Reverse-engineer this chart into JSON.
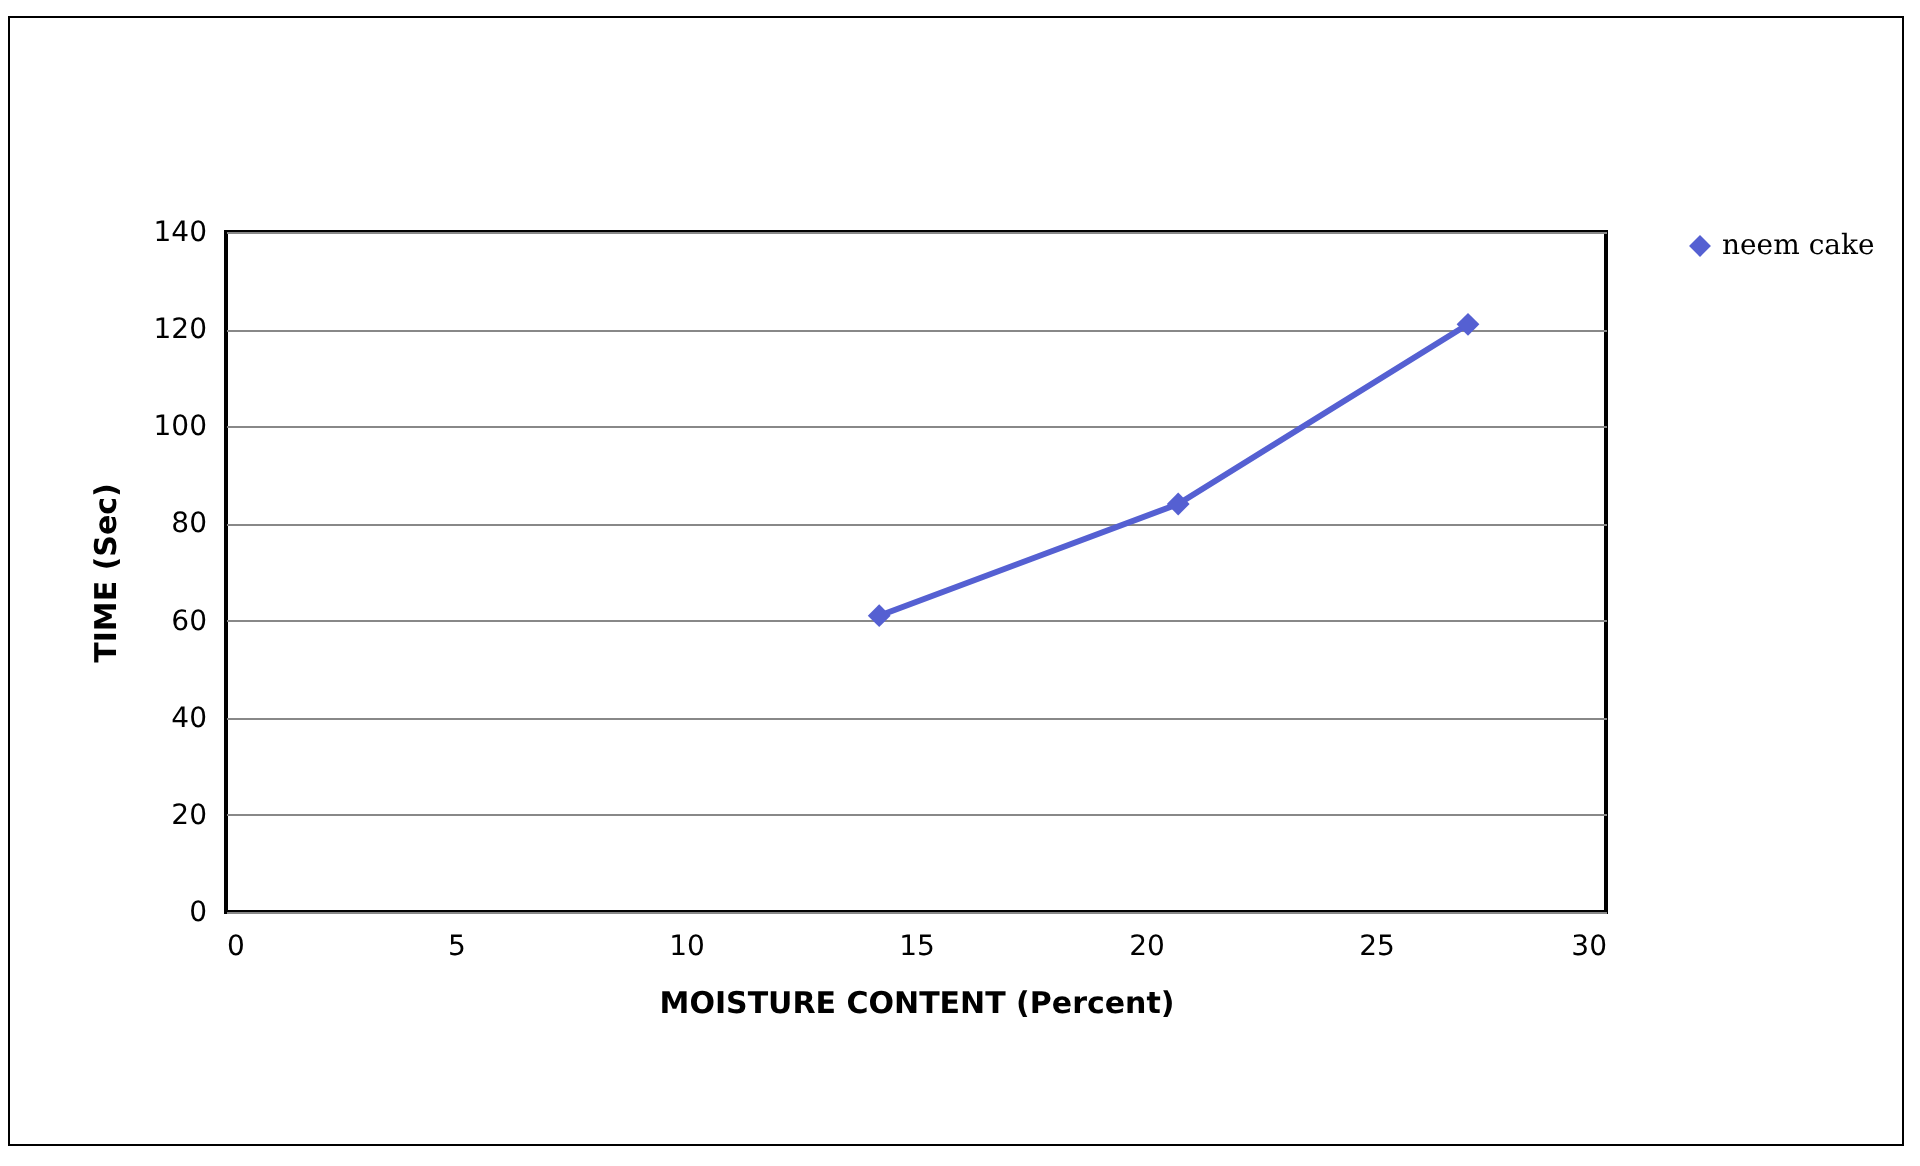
{
  "chart_data": {
    "type": "line",
    "xlabel": "MOISTURE CONTENT (Percent)",
    "ylabel": "TIME (Sec)",
    "x": [
      14.2,
      20.7,
      27
    ],
    "series": [
      {
        "name": "neem cake",
        "color": "#5560d2",
        "values": [
          61,
          84,
          121
        ]
      }
    ],
    "xlim": [
      0,
      30
    ],
    "xticks": [
      0,
      5,
      10,
      15,
      20,
      25,
      30
    ],
    "ylim": [
      0,
      140
    ],
    "yticks": [
      0,
      20,
      40,
      60,
      80,
      100,
      120,
      140
    ],
    "grid": "y",
    "legend": "right",
    "marker": "diamond",
    "line_style": "solid"
  }
}
